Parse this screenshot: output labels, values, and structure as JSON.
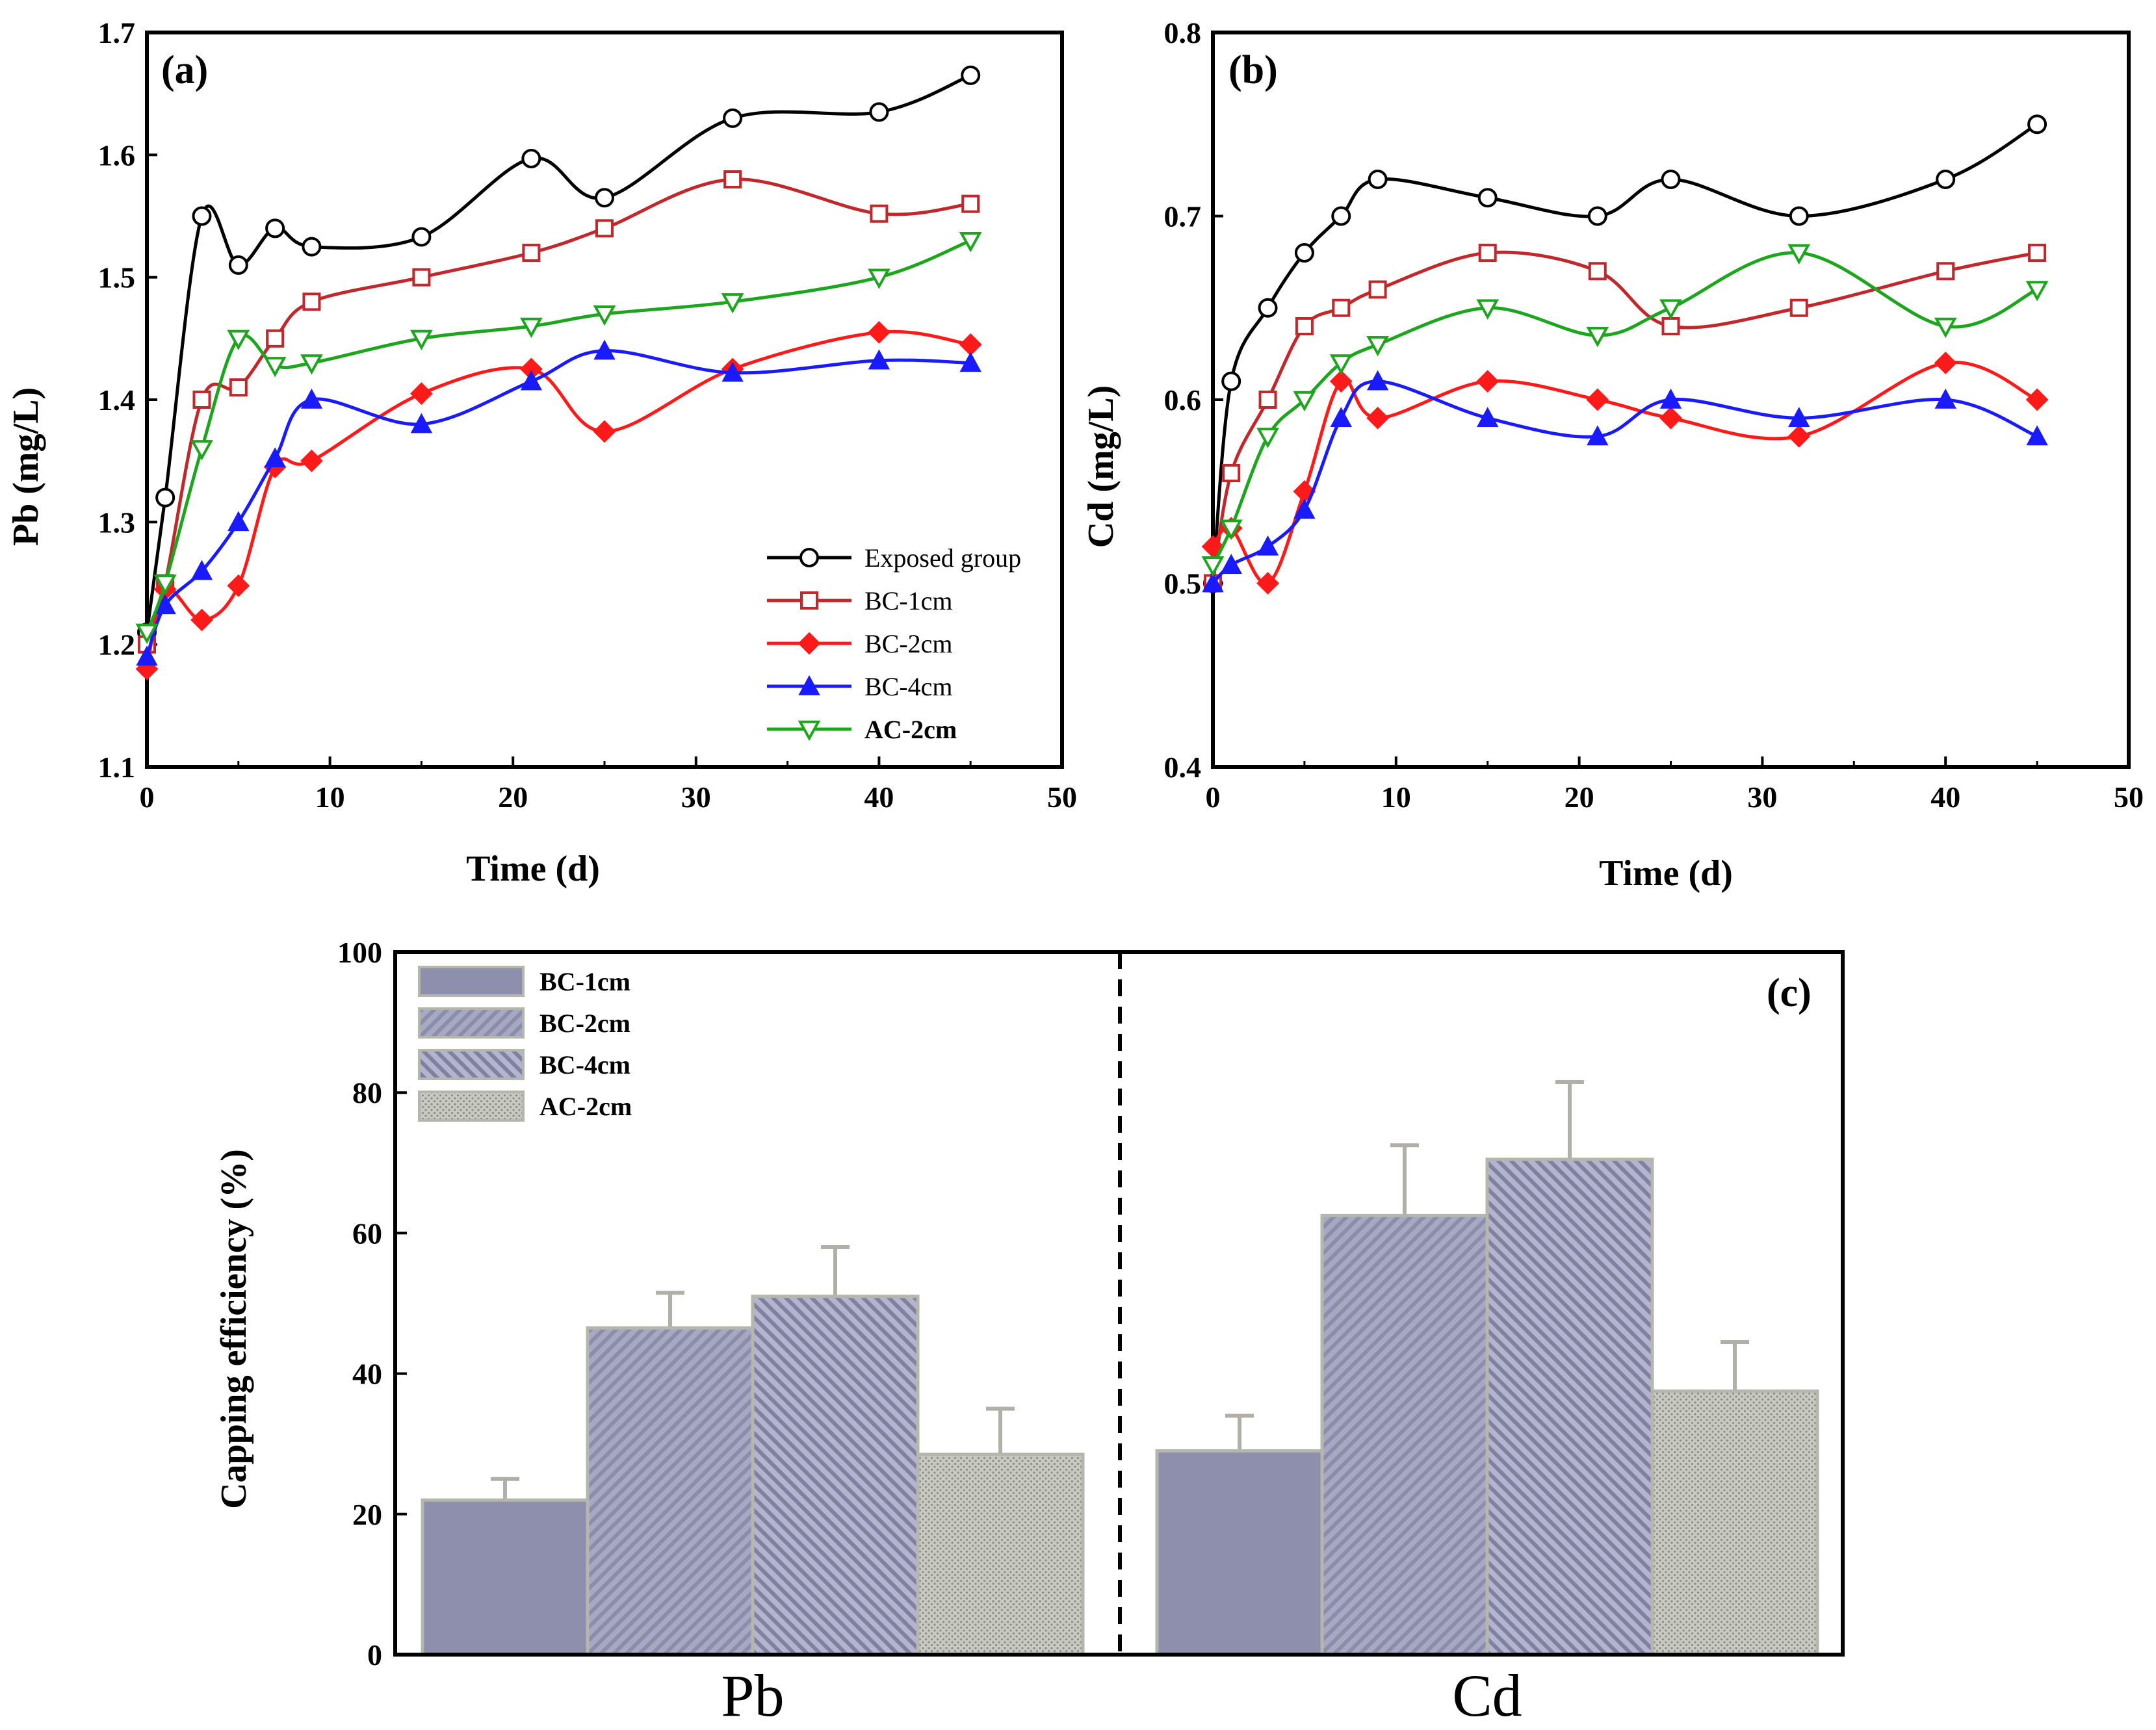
{
  "chart_data": [
    {
      "panel": "(a)",
      "type": "line",
      "title": "",
      "xlabel": "Time (d)",
      "ylabel": "Pb (mg/L)",
      "xlim": [
        0,
        50
      ],
      "ylim": [
        1.1,
        1.7
      ],
      "xticks": [
        "0",
        "10",
        "20",
        "30",
        "40",
        "50"
      ],
      "yticks": [
        "1.1",
        "1.2",
        "1.3",
        "1.4",
        "1.5",
        "1.6",
        "1.7"
      ],
      "legend_position": "bottom-right",
      "series": [
        {
          "name": "Exposed group",
          "color": "#000000",
          "marker": "circle-open",
          "x": [
            0,
            1,
            3,
            5,
            7,
            9,
            15,
            21,
            25,
            32,
            40,
            45
          ],
          "y": [
            1.21,
            1.32,
            1.55,
            1.51,
            1.54,
            1.525,
            1.533,
            1.597,
            1.565,
            1.63,
            1.635,
            1.665
          ]
        },
        {
          "name": "BC-1cm",
          "color": "#c0282b",
          "marker": "square-open",
          "x": [
            0,
            1,
            3,
            5,
            7,
            9,
            15,
            21,
            25,
            32,
            40,
            45
          ],
          "y": [
            1.2,
            1.25,
            1.4,
            1.41,
            1.45,
            1.48,
            1.5,
            1.52,
            1.54,
            1.58,
            1.552,
            1.56
          ]
        },
        {
          "name": "BC-2cm",
          "color": "#ff1a1a",
          "marker": "diamond-filled",
          "x": [
            0,
            1,
            3,
            5,
            7,
            9,
            15,
            21,
            25,
            32,
            40,
            45
          ],
          "y": [
            1.18,
            1.245,
            1.22,
            1.248,
            1.345,
            1.35,
            1.405,
            1.425,
            1.374,
            1.425,
            1.455,
            1.445
          ]
        },
        {
          "name": "BC-4cm",
          "color": "#1a1aff",
          "marker": "triangle-up-filled",
          "x": [
            0,
            1,
            3,
            5,
            7,
            9,
            15,
            21,
            25,
            32,
            40,
            45
          ],
          "y": [
            1.19,
            1.232,
            1.26,
            1.3,
            1.352,
            1.4,
            1.38,
            1.415,
            1.44,
            1.422,
            1.432,
            1.43
          ]
        },
        {
          "name": "AC-2cm",
          "color": "#1ea51e",
          "marker": "triangle-down-open",
          "x": [
            0,
            1,
            3,
            5,
            7,
            9,
            15,
            21,
            25,
            32,
            40,
            45
          ],
          "y": [
            1.21,
            1.25,
            1.36,
            1.45,
            1.428,
            1.43,
            1.45,
            1.46,
            1.47,
            1.48,
            1.5,
            1.53
          ]
        }
      ]
    },
    {
      "panel": "(b)",
      "type": "line",
      "title": "",
      "xlabel": "Time (d)",
      "ylabel": "Cd (mg/L)",
      "xlim": [
        0,
        50
      ],
      "ylim": [
        0.4,
        0.8
      ],
      "xticks": [
        "0",
        "10",
        "20",
        "30",
        "40",
        "50"
      ],
      "yticks": [
        "0.4",
        "0.5",
        "0.6",
        "0.7",
        "0.8"
      ],
      "series": [
        {
          "name": "Exposed group",
          "color": "#000000",
          "marker": "circle-open",
          "x": [
            0,
            1,
            3,
            5,
            7,
            9,
            15,
            21,
            25,
            32,
            40,
            45
          ],
          "y": [
            0.5,
            0.61,
            0.65,
            0.68,
            0.7,
            0.72,
            0.71,
            0.7,
            0.72,
            0.7,
            0.72,
            0.75
          ]
        },
        {
          "name": "BC-1cm",
          "color": "#c0282b",
          "marker": "square-open",
          "x": [
            0,
            1,
            3,
            5,
            7,
            9,
            15,
            21,
            25,
            32,
            40,
            45
          ],
          "y": [
            0.5,
            0.56,
            0.6,
            0.64,
            0.65,
            0.66,
            0.68,
            0.67,
            0.64,
            0.65,
            0.67,
            0.68
          ]
        },
        {
          "name": "BC-2cm",
          "color": "#ff1a1a",
          "marker": "diamond-filled",
          "x": [
            0,
            1,
            3,
            5,
            7,
            9,
            15,
            21,
            25,
            32,
            40,
            45
          ],
          "y": [
            0.52,
            0.53,
            0.5,
            0.55,
            0.61,
            0.59,
            0.61,
            0.6,
            0.59,
            0.58,
            0.62,
            0.6
          ]
        },
        {
          "name": "BC-4cm",
          "color": "#1a1aff",
          "marker": "triangle-up-filled",
          "x": [
            0,
            1,
            3,
            5,
            7,
            9,
            15,
            21,
            25,
            32,
            40,
            45
          ],
          "y": [
            0.5,
            0.51,
            0.52,
            0.54,
            0.59,
            0.61,
            0.59,
            0.58,
            0.6,
            0.59,
            0.6,
            0.58
          ]
        },
        {
          "name": "AC-2cm",
          "color": "#1ea51e",
          "marker": "triangle-down-open",
          "x": [
            0,
            1,
            3,
            5,
            7,
            9,
            15,
            21,
            25,
            32,
            40,
            45
          ],
          "y": [
            0.51,
            0.53,
            0.58,
            0.6,
            0.62,
            0.63,
            0.65,
            0.635,
            0.65,
            0.68,
            0.64,
            0.66
          ]
        }
      ]
    },
    {
      "panel": "(c)",
      "type": "bar",
      "title": "",
      "xlabel": "",
      "ylabel": "Capping efficiency (%)",
      "ylim": [
        0,
        100
      ],
      "yticks": [
        "0",
        "20",
        "40",
        "60",
        "80",
        "100"
      ],
      "categories": [
        "Pb",
        "Cd"
      ],
      "legend_position": "top-left",
      "series": [
        {
          "name": "BC-1cm",
          "pattern": "solid",
          "values": [
            22,
            29
          ],
          "errors": [
            3,
            5
          ]
        },
        {
          "name": "BC-2cm",
          "pattern": "diagonal-right",
          "values": [
            46.5,
            62.5
          ],
          "errors": [
            5,
            10
          ]
        },
        {
          "name": "BC-4cm",
          "pattern": "diagonal-left",
          "values": [
            51,
            70.5
          ],
          "errors": [
            7,
            11
          ]
        },
        {
          "name": "AC-2cm",
          "pattern": "dots",
          "values": [
            28.5,
            37.5
          ],
          "errors": [
            6.5,
            7
          ]
        }
      ]
    }
  ]
}
